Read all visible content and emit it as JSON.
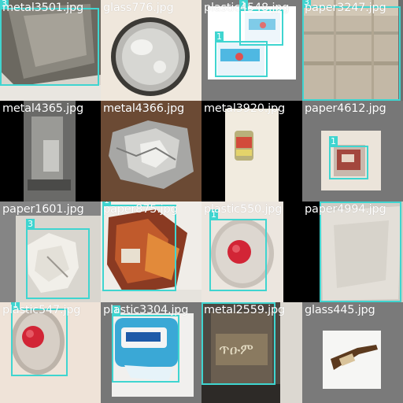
{
  "box_color": "#3fd5d0",
  "tiles": [
    {
      "filename": "metal3501.jpg",
      "boxes": [
        {
          "label": "3"
        }
      ]
    },
    {
      "filename": "glass776.jpg",
      "boxes": []
    },
    {
      "filename": "plastic4548.jpg",
      "boxes": [
        {
          "label": "1"
        },
        {
          "label": "1"
        }
      ]
    },
    {
      "filename": "paper3247.jpg",
      "boxes": [
        {
          "label": "3"
        }
      ]
    },
    {
      "filename": "metal4365.jpg",
      "boxes": []
    },
    {
      "filename": "metal4366.jpg",
      "boxes": []
    },
    {
      "filename": "metal3920.jpg",
      "boxes": []
    },
    {
      "filename": "paper4612.jpg",
      "boxes": [
        {
          "label": "1"
        }
      ]
    },
    {
      "filename": "paper1601.jpg",
      "boxes": [
        {
          "label": "3"
        }
      ]
    },
    {
      "filename": "paper875.jpg",
      "boxes": [
        {
          "label": "1"
        }
      ]
    },
    {
      "filename": "plastic550.jpg",
      "boxes": [
        {
          "label": "1"
        }
      ]
    },
    {
      "filename": "paper4994.jpg",
      "boxes": [
        {
          "label": "3"
        }
      ]
    },
    {
      "filename": "plastic547.jpg",
      "boxes": [
        {
          "label": "1"
        }
      ]
    },
    {
      "filename": "plastic3304.jpg",
      "boxes": [
        {
          "label": "1"
        }
      ]
    },
    {
      "filename": "metal2559.jpg",
      "boxes": [
        {
          "label": "1"
        }
      ]
    },
    {
      "filename": "glass445.jpg",
      "boxes": []
    }
  ]
}
